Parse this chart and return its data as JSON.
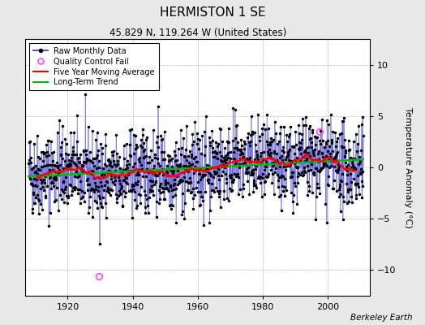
{
  "title": "HERMISTON 1 SE",
  "subtitle": "45.829 N, 119.264 W (United States)",
  "ylabel": "Temperature Anomaly (°C)",
  "credit": "Berkeley Earth",
  "year_start": 1908,
  "year_end": 2011,
  "ylim": [
    -12.5,
    12.5
  ],
  "yticks": [
    -10,
    -5,
    0,
    5,
    10
  ],
  "xticks": [
    1920,
    1940,
    1960,
    1980,
    2000
  ],
  "raw_color": "#3333cc",
  "stem_color": "#8888ee",
  "moving_avg_color": "#ff0000",
  "trend_color": "#00bb00",
  "qc_fail_color": "#ff44ff",
  "background_color": "#e8e8e8",
  "plot_bg_color": "#ffffff",
  "seed": 42,
  "qc_fail_year_1": 1929.5,
  "qc_fail_val_1": -10.6,
  "qc_fail_year_2": 1997.5,
  "qc_fail_val_2": 3.5,
  "trend_slope": 0.003,
  "trend_intercept": -0.15,
  "noise_std": 2.0
}
